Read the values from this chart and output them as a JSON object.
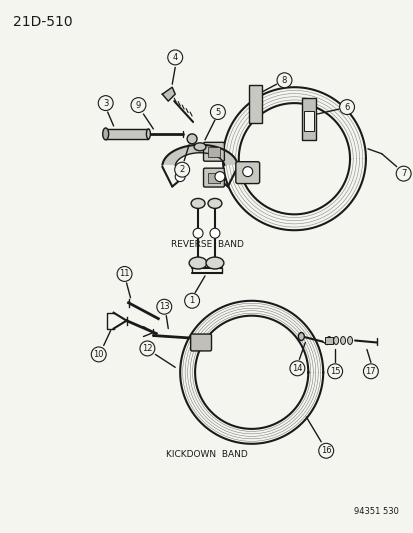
{
  "title": "21D-510",
  "bg_color": "#f5f5f0",
  "line_color": "#1a1a1a",
  "reverse_band_label": "REVERSE  BAND",
  "kickdown_band_label": "KICKDOWN  BAND",
  "footer": "94351 530",
  "title_fontsize": 10,
  "label_fontsize": 6.5,
  "footer_fontsize": 6,
  "circle_r": 7.5,
  "circle_fontsize": 6
}
